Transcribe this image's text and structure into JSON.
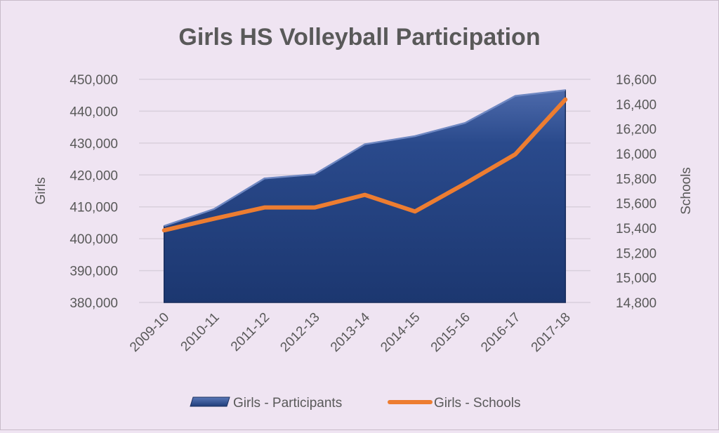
{
  "chart_data": {
    "type": "area",
    "title": "Girls HS Volleyball Participation",
    "categories": [
      "2009-10",
      "2010-11",
      "2011-12",
      "2012-13",
      "2013-14",
      "2014-15",
      "2015-16",
      "2016-17",
      "2017-18"
    ],
    "series": [
      {
        "name": "Girls - Participants",
        "type": "area",
        "axis": "left",
        "color": "#1f3d7a",
        "values": [
          403985,
          409332,
          418903,
          420208,
          429634,
          432176,
          436309,
          444779,
          446583
        ]
      },
      {
        "name": "Girls - Schools",
        "type": "line",
        "axis": "right",
        "color": "#ed7d31",
        "values": [
          15382,
          15476,
          15566,
          15566,
          15668,
          15534,
          15759,
          15995,
          16437
        ]
      }
    ],
    "y_left": {
      "label": "Girls",
      "min": 380000,
      "max": 450000,
      "ticks": [
        380000,
        390000,
        400000,
        410000,
        420000,
        430000,
        440000,
        450000
      ],
      "tick_labels": [
        "380,000",
        "390,000",
        "400,000",
        "410,000",
        "420,000",
        "430,000",
        "440,000",
        "450,000"
      ]
    },
    "y_right": {
      "label": "Schools",
      "min": 14800,
      "max": 16600,
      "ticks": [
        14800,
        15000,
        15200,
        15400,
        15600,
        15800,
        16000,
        16200,
        16400,
        16600
      ],
      "tick_labels": [
        "14,800",
        "15,000",
        "15,200",
        "15,400",
        "15,600",
        "15,800",
        "16,000",
        "16,200",
        "16,400",
        "16,600"
      ]
    },
    "grid": true,
    "legend_position": "bottom"
  },
  "colors": {
    "background": "#efe4f2",
    "grid": "#d9cfdc",
    "text": "#595959",
    "title": "#595959"
  }
}
